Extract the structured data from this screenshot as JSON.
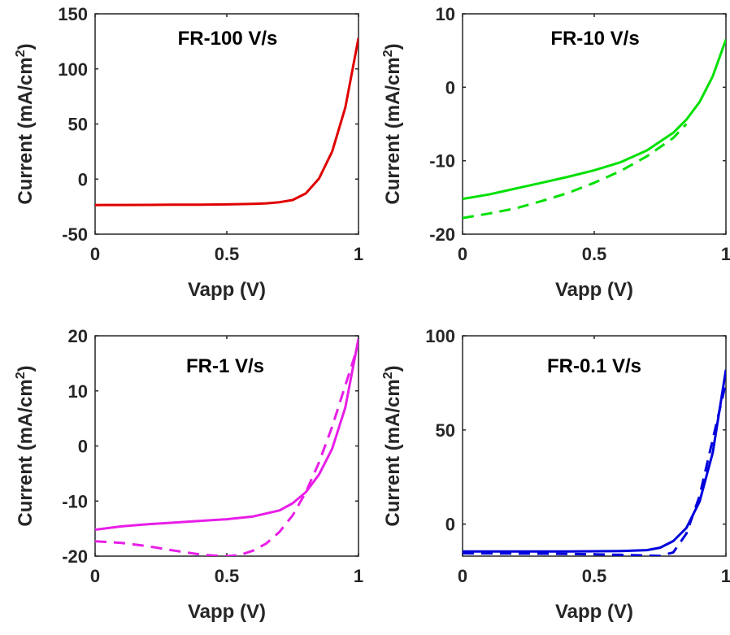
{
  "chart_data": [
    {
      "type": "line",
      "title": "FR-100 V/s",
      "xlabel": "Vapp (V)",
      "ylabel": "Current (mA/cm",
      "ylabel_sup": "2",
      "ylabel_close": ")",
      "xlim": [
        0,
        1
      ],
      "ylim": [
        -50,
        150
      ],
      "xticks": [
        0,
        0.5,
        1
      ],
      "yticks": [
        -50,
        0,
        50,
        100,
        150
      ],
      "color": "#e00000",
      "series": [
        {
          "style": "solid",
          "x": [
            0,
            0.1,
            0.2,
            0.3,
            0.4,
            0.5,
            0.6,
            0.65,
            0.7,
            0.75,
            0.8,
            0.85,
            0.9,
            0.95,
            1.0
          ],
          "y": [
            -23.6,
            -23.5,
            -23.4,
            -23.3,
            -23.2,
            -23.0,
            -22.5,
            -22.0,
            -21.0,
            -19.0,
            -13.0,
            0.5,
            25,
            65,
            128
          ]
        }
      ]
    },
    {
      "type": "line",
      "title": "FR-10 V/s",
      "xlabel": "Vapp (V)",
      "ylabel": "Current (mA/cm",
      "ylabel_sup": "2",
      "ylabel_close": ")",
      "xlim": [
        0,
        1
      ],
      "ylim": [
        -20,
        10
      ],
      "xticks": [
        0,
        0.5,
        1
      ],
      "yticks": [
        -20,
        -10,
        0,
        10
      ],
      "color": "#00e000",
      "series": [
        {
          "style": "solid",
          "x": [
            0,
            0.1,
            0.2,
            0.3,
            0.4,
            0.5,
            0.6,
            0.7,
            0.8,
            0.85,
            0.9,
            0.95,
            1.0
          ],
          "y": [
            -15.2,
            -14.6,
            -13.8,
            -13.0,
            -12.2,
            -11.3,
            -10.2,
            -8.6,
            -6.2,
            -4.4,
            -2.0,
            1.5,
            6.5
          ]
        },
        {
          "style": "dashed",
          "x": [
            0,
            0.1,
            0.2,
            0.3,
            0.4,
            0.5,
            0.6,
            0.7,
            0.8,
            0.85
          ],
          "y": [
            -17.8,
            -17.2,
            -16.5,
            -15.5,
            -14.4,
            -13.0,
            -11.4,
            -9.4,
            -6.9,
            -5.0
          ]
        }
      ]
    },
    {
      "type": "line",
      "title": "FR-1 V/s",
      "xlabel": "Vapp (V)",
      "ylabel": "Current (mA/cm",
      "ylabel_sup": "2",
      "ylabel_close": ")",
      "xlim": [
        0,
        1
      ],
      "ylim": [
        -20,
        20
      ],
      "xticks": [
        0,
        0.5,
        1
      ],
      "yticks": [
        -20,
        -10,
        0,
        10,
        20
      ],
      "color": "#e81ee8",
      "series": [
        {
          "style": "solid",
          "x": [
            0,
            0.1,
            0.2,
            0.3,
            0.4,
            0.5,
            0.6,
            0.7,
            0.75,
            0.8,
            0.85,
            0.9,
            0.95,
            1.0
          ],
          "y": [
            -15.2,
            -14.6,
            -14.2,
            -13.9,
            -13.6,
            -13.3,
            -12.8,
            -11.7,
            -10.4,
            -8.4,
            -5.2,
            -0.5,
            7.0,
            19.5
          ]
        },
        {
          "style": "dashed",
          "x": [
            0,
            0.1,
            0.2,
            0.3,
            0.4,
            0.45,
            0.5,
            0.55,
            0.6,
            0.65,
            0.7,
            0.75,
            0.8,
            0.85,
            0.9,
            0.95,
            1.0
          ],
          "y": [
            -17.3,
            -17.6,
            -18.2,
            -19.0,
            -19.7,
            -19.9,
            -20.0,
            -19.8,
            -19.0,
            -17.7,
            -15.6,
            -12.6,
            -8.4,
            -3.0,
            3.5,
            11.0,
            18.5
          ]
        }
      ]
    },
    {
      "type": "line",
      "title": "FR-0.1 V/s",
      "xlabel": "Vapp (V)",
      "ylabel": "Current (mA/cm",
      "ylabel_sup": "2",
      "ylabel_close": ")",
      "xlim": [
        0,
        1
      ],
      "ylim": [
        -17,
        100
      ],
      "xticks": [
        0,
        0.5,
        1
      ],
      "yticks": [
        0,
        50,
        100
      ],
      "color": "#0000dc",
      "series": [
        {
          "style": "solid",
          "x": [
            0,
            0.2,
            0.4,
            0.6,
            0.7,
            0.75,
            0.8,
            0.85,
            0.9,
            0.95,
            1.0
          ],
          "y": [
            -14.5,
            -14.5,
            -14.5,
            -14.3,
            -13.8,
            -12.5,
            -9.0,
            -2.0,
            12.0,
            38.0,
            82.0
          ]
        },
        {
          "style": "dashed",
          "x": [
            0,
            0.2,
            0.4,
            0.6,
            0.7,
            0.75,
            0.8,
            0.85,
            0.9,
            0.95,
            1.0
          ],
          "y": [
            -15.5,
            -15.6,
            -15.8,
            -16.3,
            -16.7,
            -16.9,
            -15.0,
            -5.0,
            15.0,
            45.0,
            75.0
          ]
        }
      ]
    }
  ]
}
